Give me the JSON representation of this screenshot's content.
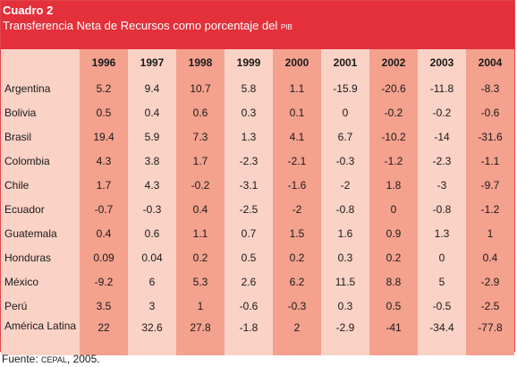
{
  "table": {
    "label": "Cuadro 2",
    "title": "Transferencia Neta de Recursos como porcentaje del",
    "title_suffix": "PIB",
    "columns": [
      "1996",
      "1997",
      "1998",
      "1999",
      "2000",
      "2001",
      "2002",
      "2003",
      "2004"
    ],
    "rows": [
      {
        "country": "Argentina",
        "values": [
          "5.2",
          "9.4",
          "10.7",
          "5.8",
          "1.1",
          "-15.9",
          "-20.6",
          "-11.8",
          "-8.3"
        ]
      },
      {
        "country": "Bolivia",
        "values": [
          "0.5",
          "0.4",
          "0.6",
          "0.3",
          "0.1",
          "0",
          "-0.2",
          "-0.2",
          "-0.6"
        ]
      },
      {
        "country": "Brasil",
        "values": [
          "19.4",
          "5.9",
          "7.3",
          "1.3",
          "4.1",
          "6.7",
          "-10.2",
          "-14",
          "-31.6"
        ]
      },
      {
        "country": "Colombia",
        "values": [
          "4.3",
          "3.8",
          "1.7",
          "-2.3",
          "-2.1",
          "-0.3",
          "-1.2",
          "-2.3",
          "-1.1"
        ]
      },
      {
        "country": "Chile",
        "values": [
          "1.7",
          "4.3",
          "-0.2",
          "-3.1",
          "-1.6",
          "-2",
          "1.8",
          "-3",
          "-9.7"
        ]
      },
      {
        "country": "Ecuador",
        "values": [
          "-0.7",
          "-0.3",
          "0.4",
          "-2.5",
          "-2",
          "-0.8",
          "0",
          "-0.8",
          "-1.2"
        ]
      },
      {
        "country": "Guatemala",
        "values": [
          "0.4",
          "0.6",
          "1.1",
          "0.7",
          "1.5",
          "1.6",
          "0.9",
          "1.3",
          "1"
        ]
      },
      {
        "country": "Honduras",
        "values": [
          "0.09",
          "0.04",
          "0.2",
          "0.5",
          "0.2",
          "0.3",
          "0.2",
          "0",
          "0.4"
        ]
      },
      {
        "country": "México",
        "values": [
          "-9.2",
          "6",
          "5.3",
          "2.6",
          "6.2",
          "11.5",
          "8.8",
          "5",
          "-2.9"
        ]
      },
      {
        "country": "Perú",
        "values": [
          "3.5",
          "3",
          "1",
          "-0.6",
          "-0.3",
          "0.3",
          "0.5",
          "-0.5",
          "-2.5"
        ]
      },
      {
        "country": "América Latina",
        "values": [
          "22",
          "32.6",
          "27.8",
          "-1.8",
          "2",
          "-2.9",
          "-41",
          "-34.4",
          "-77.8"
        ]
      }
    ]
  },
  "footer": {
    "prefix": "Fuente:",
    "source": "CEPAL",
    "suffix": ", 2005."
  },
  "colors": {
    "header_bg": "#e4303b",
    "light_col": "#fbd2c6",
    "dark_col": "#f4a18e"
  }
}
